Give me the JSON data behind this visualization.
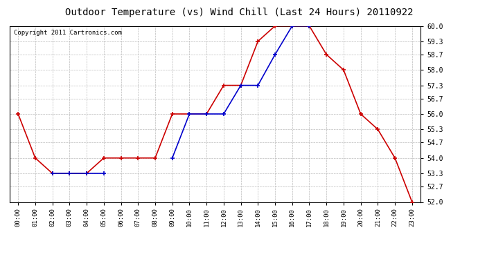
{
  "title": "Outdoor Temperature (vs) Wind Chill (Last 24 Hours) 20110922",
  "copyright": "Copyright 2011 Cartronics.com",
  "x_labels": [
    "00:00",
    "01:00",
    "02:00",
    "03:00",
    "04:00",
    "05:00",
    "06:00",
    "07:00",
    "08:00",
    "09:00",
    "10:00",
    "11:00",
    "12:00",
    "13:00",
    "14:00",
    "15:00",
    "16:00",
    "17:00",
    "18:00",
    "19:00",
    "20:00",
    "21:00",
    "22:00",
    "23:00"
  ],
  "temp_red": [
    56.0,
    54.0,
    53.3,
    53.3,
    53.3,
    54.0,
    54.0,
    54.0,
    54.0,
    56.0,
    56.0,
    56.0,
    57.3,
    57.3,
    59.3,
    60.0,
    60.0,
    60.0,
    58.7,
    58.0,
    56.0,
    55.3,
    54.0,
    52.0
  ],
  "wind_blue": [
    null,
    null,
    53.3,
    53.3,
    53.3,
    53.3,
    null,
    null,
    null,
    54.0,
    56.0,
    56.0,
    56.0,
    57.3,
    57.3,
    58.7,
    60.0,
    60.0,
    null,
    null,
    null,
    null,
    null,
    null
  ],
  "ylim_min": 52.0,
  "ylim_max": 60.0,
  "yticks": [
    52.0,
    52.7,
    53.3,
    54.0,
    54.7,
    55.3,
    56.0,
    56.7,
    57.3,
    58.0,
    58.7,
    59.3,
    60.0
  ],
  "red_color": "#cc0000",
  "blue_color": "#0000cc",
  "background_color": "#ffffff",
  "plot_bg_color": "#ffffff",
  "grid_color": "#bbbbbb",
  "title_fontsize": 10,
  "copyright_fontsize": 6.5
}
